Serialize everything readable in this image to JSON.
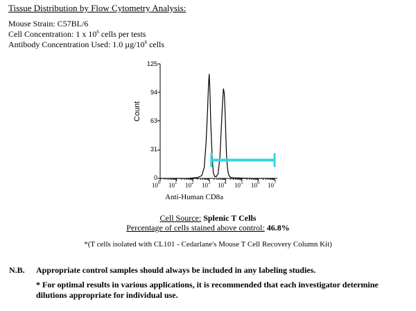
{
  "header": {
    "title": "Tissue Distribution by Flow Cytometry Analysis:",
    "mouse_strain": "Mouse Strain:  C57BL/6",
    "cell_conc_prefix": "Cell Concentration: 1 x 10",
    "cell_conc_exp": "6",
    "cell_conc_suffix": " cells per tests",
    "ab_conc_prefix": "Antibody Concentration Used: 1.0 µg/10",
    "ab_conc_exp": "6",
    "ab_conc_suffix": " cells"
  },
  "chart_data": {
    "type": "line",
    "xlabel": "Anti-Human CD8a",
    "ylabel": "Count",
    "x_scale": "log",
    "x_ticks": [
      {
        "base": "10",
        "exp": "0"
      },
      {
        "base": "10",
        "exp": "1"
      },
      {
        "base": "10",
        "exp": "2"
      },
      {
        "base": "10",
        "exp": "3"
      },
      {
        "base": "10",
        "exp": "4"
      },
      {
        "base": "10",
        "exp": "5"
      },
      {
        "base": "10",
        "exp": "6"
      },
      {
        "base": "10",
        "exp": "7"
      }
    ],
    "y_ticks": [
      "125",
      "94",
      "63",
      "31",
      "0"
    ],
    "ylim": [
      0,
      125
    ],
    "xlim": [
      1,
      10000000
    ],
    "series": [
      {
        "color": "#000000",
        "x": [
          1,
          10,
          50,
          200,
          350,
          500,
          650,
          800,
          900,
          1000,
          1100,
          1250,
          1500,
          1800,
          2200,
          2700,
          3500,
          4500,
          5500,
          6500,
          7500,
          8500,
          9500,
          10500,
          11500,
          13000,
          15000,
          18000,
          22000,
          30000,
          50000,
          100000,
          500000,
          10000000
        ],
        "y": [
          0,
          0,
          0,
          1,
          3,
          12,
          40,
          75,
          100,
          114,
          98,
          60,
          25,
          6,
          2,
          2,
          5,
          22,
          55,
          82,
          98,
          92,
          70,
          45,
          25,
          12,
          5,
          2,
          1,
          0.5,
          0.5,
          0.3,
          0,
          0
        ]
      }
    ],
    "marker": {
      "x_start": 1350,
      "x_end": 10000000,
      "y": 20,
      "color": "#33d6e6"
    }
  },
  "footer": {
    "cell_source_label": "Cell Source:",
    "cell_source_value": " Splenic T Cells",
    "pct_label": "Percentage of cells stained above control:",
    "pct_value": "  46.8%",
    "note": "*(T cells isolated with CL101 - Cedarlane's Mouse T Cell Recovery Column Kit)",
    "nb_key": "N.B.",
    "nb_text": "Appropriate control samples should always be included in any labeling studies.",
    "optimal": "* For optimal results in various applications, it is recommended that each investigator determine dilutions appropriate for individual use."
  }
}
